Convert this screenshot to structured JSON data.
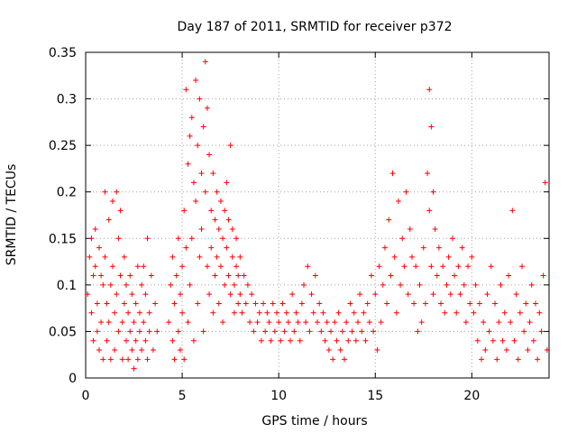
{
  "chart_data": {
    "type": "scatter",
    "title": "Day 187 of 2011, SRMTID for receiver p372",
    "xlabel": "GPS time / hours",
    "ylabel": "SRMTID / TECUs",
    "xlim": [
      0,
      24
    ],
    "ylim": [
      0,
      0.35
    ],
    "x_ticks": [
      0,
      5,
      10,
      15,
      20
    ],
    "x_tick_labels": [
      "0",
      "5",
      "10",
      "15",
      "20"
    ],
    "y_ticks": [
      0,
      0.05,
      0.1,
      0.15,
      0.2,
      0.25,
      0.3,
      0.35
    ],
    "y_tick_labels": [
      "0",
      "0.05",
      "0.1",
      "0.15",
      "0.2",
      "0.25",
      "0.3",
      "0.35"
    ],
    "grid": true,
    "legend": false,
    "marker": "+",
    "color": "#ff0000",
    "series": [
      {
        "points": [
          [
            0.1,
            0.09
          ],
          [
            0.2,
            0.13
          ],
          [
            0.3,
            0.07
          ],
          [
            0.3,
            0.15
          ],
          [
            0.4,
            0.11
          ],
          [
            0.4,
            0.04
          ],
          [
            0.5,
            0.16
          ],
          [
            0.5,
            0.12
          ],
          [
            0.6,
            0.08
          ],
          [
            0.6,
            0.05
          ],
          [
            0.7,
            0.14
          ],
          [
            0.7,
            0.03
          ],
          [
            0.8,
            0.11
          ],
          [
            0.8,
            0.06
          ],
          [
            0.9,
            0.1
          ],
          [
            0.9,
            0.02
          ],
          [
            1.0,
            0.2
          ],
          [
            1.0,
            0.13
          ],
          [
            1.1,
            0.08
          ],
          [
            1.1,
            0.04
          ],
          [
            1.2,
            0.17
          ],
          [
            1.2,
            0.06
          ],
          [
            1.3,
            0.1
          ],
          [
            1.3,
            0.02
          ],
          [
            1.4,
            0.19
          ],
          [
            1.4,
            0.12
          ],
          [
            1.5,
            0.07
          ],
          [
            1.5,
            0.03
          ],
          [
            1.6,
            0.2
          ],
          [
            1.6,
            0.09
          ],
          [
            1.7,
            0.05
          ],
          [
            1.7,
            0.15
          ],
          [
            1.8,
            0.18
          ],
          [
            1.8,
            0.11
          ],
          [
            1.9,
            0.06
          ],
          [
            1.9,
            0.02
          ],
          [
            2.0,
            0.13
          ],
          [
            2.0,
            0.08
          ],
          [
            2.1,
            0.04
          ],
          [
            2.1,
            0.1
          ],
          [
            2.2,
            0.07
          ],
          [
            2.2,
            0.02
          ],
          [
            2.3,
            0.11
          ],
          [
            2.3,
            0.05
          ],
          [
            2.4,
            0.09
          ],
          [
            2.4,
            0.03
          ],
          [
            2.5,
            0.06
          ],
          [
            2.5,
            0.01
          ],
          [
            2.6,
            0.08
          ],
          [
            2.6,
            0.04
          ],
          [
            2.7,
            0.12
          ],
          [
            2.7,
            0.02
          ],
          [
            2.8,
            0.07
          ],
          [
            2.8,
            0.05
          ],
          [
            2.9,
            0.1
          ],
          [
            2.9,
            0.03
          ],
          [
            3.0,
            0.06
          ],
          [
            3.0,
            0.12
          ],
          [
            3.1,
            0.09
          ],
          [
            3.1,
            0.04
          ],
          [
            3.2,
            0.15
          ],
          [
            3.2,
            0.02
          ],
          [
            3.3,
            0.07
          ],
          [
            3.3,
            0.05
          ],
          [
            3.4,
            0.11
          ],
          [
            3.5,
            0.03
          ],
          [
            3.6,
            0.08
          ],
          [
            3.7,
            0.05
          ],
          [
            4.3,
            0.06
          ],
          [
            4.4,
            0.1
          ],
          [
            4.5,
            0.04
          ],
          [
            4.5,
            0.13
          ],
          [
            4.6,
            0.08
          ],
          [
            4.6,
            0.02
          ],
          [
            4.7,
            0.11
          ],
          [
            4.8,
            0.05
          ],
          [
            4.8,
            0.15
          ],
          [
            4.9,
            0.09
          ],
          [
            4.9,
            0.03
          ],
          [
            5.0,
            0.07
          ],
          [
            5.0,
            0.12
          ],
          [
            5.1,
            0.02
          ],
          [
            5.1,
            0.18
          ],
          [
            5.2,
            0.31
          ],
          [
            5.2,
            0.14
          ],
          [
            5.3,
            0.23
          ],
          [
            5.3,
            0.06
          ],
          [
            5.4,
            0.26
          ],
          [
            5.4,
            0.1
          ],
          [
            5.5,
            0.28
          ],
          [
            5.5,
            0.15
          ],
          [
            5.6,
            0.21
          ],
          [
            5.6,
            0.04
          ],
          [
            5.7,
            0.32
          ],
          [
            5.7,
            0.19
          ],
          [
            5.8,
            0.25
          ],
          [
            5.8,
            0.08
          ],
          [
            5.9,
            0.3
          ],
          [
            5.9,
            0.13
          ],
          [
            6.0,
            0.22
          ],
          [
            6.0,
            0.16
          ],
          [
            6.1,
            0.27
          ],
          [
            6.1,
            0.05
          ],
          [
            6.2,
            0.34
          ],
          [
            6.2,
            0.2
          ],
          [
            6.3,
            0.29
          ],
          [
            6.3,
            0.12
          ],
          [
            6.4,
            0.24
          ],
          [
            6.4,
            0.09
          ],
          [
            6.5,
            0.18
          ],
          [
            6.5,
            0.14
          ],
          [
            6.6,
            0.22
          ],
          [
            6.6,
            0.07
          ],
          [
            6.7,
            0.17
          ],
          [
            6.7,
            0.11
          ],
          [
            6.8,
            0.13
          ],
          [
            6.8,
            0.2
          ],
          [
            6.9,
            0.16
          ],
          [
            6.9,
            0.08
          ],
          [
            7.0,
            0.19
          ],
          [
            7.0,
            0.12
          ],
          [
            7.1,
            0.15
          ],
          [
            7.1,
            0.06
          ],
          [
            7.2,
            0.18
          ],
          [
            7.2,
            0.1
          ],
          [
            7.3,
            0.14
          ],
          [
            7.3,
            0.21
          ],
          [
            7.4,
            0.11
          ],
          [
            7.4,
            0.17
          ],
          [
            7.5,
            0.25
          ],
          [
            7.5,
            0.09
          ],
          [
            7.6,
            0.13
          ],
          [
            7.6,
            0.16
          ],
          [
            7.7,
            0.1
          ],
          [
            7.7,
            0.07
          ],
          [
            7.8,
            0.12
          ],
          [
            7.8,
            0.15
          ],
          [
            7.9,
            0.08
          ],
          [
            7.9,
            0.11
          ],
          [
            8.0,
            0.09
          ],
          [
            8.0,
            0.13
          ],
          [
            8.1,
            0.07
          ],
          [
            8.2,
            0.11
          ],
          [
            8.3,
            0.08
          ],
          [
            8.4,
            0.1
          ],
          [
            8.5,
            0.06
          ],
          [
            8.6,
            0.09
          ],
          [
            8.7,
            0.05
          ],
          [
            8.8,
            0.08
          ],
          [
            8.9,
            0.06
          ],
          [
            9.0,
            0.07
          ],
          [
            9.1,
            0.04
          ],
          [
            9.2,
            0.08
          ],
          [
            9.3,
            0.05
          ],
          [
            9.4,
            0.07
          ],
          [
            9.5,
            0.06
          ],
          [
            9.6,
            0.04
          ],
          [
            9.7,
            0.08
          ],
          [
            9.8,
            0.05
          ],
          [
            9.9,
            0.07
          ],
          [
            10.0,
            0.06
          ],
          [
            10.1,
            0.04
          ],
          [
            10.2,
            0.08
          ],
          [
            10.3,
            0.05
          ],
          [
            10.4,
            0.07
          ],
          [
            10.5,
            0.06
          ],
          [
            10.6,
            0.04
          ],
          [
            10.7,
            0.09
          ],
          [
            10.8,
            0.05
          ],
          [
            10.9,
            0.07
          ],
          [
            11.0,
            0.06
          ],
          [
            11.1,
            0.04
          ],
          [
            11.2,
            0.08
          ],
          [
            11.3,
            0.1
          ],
          [
            11.4,
            0.06
          ],
          [
            11.5,
            0.12
          ],
          [
            11.6,
            0.05
          ],
          [
            11.7,
            0.09
          ],
          [
            11.8,
            0.07
          ],
          [
            11.9,
            0.11
          ],
          [
            12.0,
            0.06
          ],
          [
            12.1,
            0.08
          ],
          [
            12.2,
            0.05
          ],
          [
            12.3,
            0.07
          ],
          [
            12.4,
            0.04
          ],
          [
            12.5,
            0.06
          ],
          [
            12.6,
            0.03
          ],
          [
            12.7,
            0.05
          ],
          [
            12.8,
            0.02
          ],
          [
            12.9,
            0.06
          ],
          [
            13.0,
            0.04
          ],
          [
            13.1,
            0.07
          ],
          [
            13.2,
            0.03
          ],
          [
            13.3,
            0.05
          ],
          [
            13.4,
            0.02
          ],
          [
            13.5,
            0.06
          ],
          [
            13.6,
            0.04
          ],
          [
            13.7,
            0.08
          ],
          [
            13.8,
            0.05
          ],
          [
            13.9,
            0.07
          ],
          [
            14.0,
            0.04
          ],
          [
            14.1,
            0.06
          ],
          [
            14.2,
            0.09
          ],
          [
            14.3,
            0.05
          ],
          [
            14.4,
            0.07
          ],
          [
            14.5,
            0.04
          ],
          [
            14.6,
            0.08
          ],
          [
            14.7,
            0.06
          ],
          [
            14.8,
            0.11
          ],
          [
            14.9,
            0.05
          ],
          [
            15.0,
            0.09
          ],
          [
            15.1,
            0.03
          ],
          [
            15.2,
            0.12
          ],
          [
            15.3,
            0.06
          ],
          [
            15.4,
            0.1
          ],
          [
            15.5,
            0.14
          ],
          [
            15.6,
            0.08
          ],
          [
            15.7,
            0.17
          ],
          [
            15.8,
            0.11
          ],
          [
            15.9,
            0.22
          ],
          [
            16.0,
            0.13
          ],
          [
            16.1,
            0.07
          ],
          [
            16.2,
            0.19
          ],
          [
            16.3,
            0.1
          ],
          [
            16.4,
            0.15
          ],
          [
            16.5,
            0.12
          ],
          [
            16.6,
            0.2
          ],
          [
            16.7,
            0.09
          ],
          [
            16.8,
            0.16
          ],
          [
            16.9,
            0.13
          ],
          [
            17.0,
            0.08
          ],
          [
            17.1,
            0.12
          ],
          [
            17.2,
            0.05
          ],
          [
            17.3,
            0.1
          ],
          [
            17.4,
            0.06
          ],
          [
            17.5,
            0.14
          ],
          [
            17.6,
            0.08
          ],
          [
            17.7,
            0.22
          ],
          [
            17.8,
            0.31
          ],
          [
            17.8,
            0.18
          ],
          [
            17.9,
            0.27
          ],
          [
            17.9,
            0.12
          ],
          [
            18.0,
            0.2
          ],
          [
            18.0,
            0.09
          ],
          [
            18.1,
            0.16
          ],
          [
            18.2,
            0.11
          ],
          [
            18.3,
            0.14
          ],
          [
            18.4,
            0.08
          ],
          [
            18.5,
            0.12
          ],
          [
            18.6,
            0.07
          ],
          [
            18.7,
            0.1
          ],
          [
            18.8,
            0.13
          ],
          [
            18.9,
            0.09
          ],
          [
            19.0,
            0.15
          ],
          [
            19.1,
            0.11
          ],
          [
            19.2,
            0.07
          ],
          [
            19.3,
            0.12
          ],
          [
            19.4,
            0.09
          ],
          [
            19.5,
            0.14
          ],
          [
            19.6,
            0.1
          ],
          [
            19.7,
            0.06
          ],
          [
            19.8,
            0.12
          ],
          [
            19.9,
            0.08
          ],
          [
            20.0,
            0.13
          ],
          [
            20.1,
            0.07
          ],
          [
            20.2,
            0.1
          ],
          [
            20.3,
            0.04
          ],
          [
            20.4,
            0.08
          ],
          [
            20.5,
            0.02
          ],
          [
            20.6,
            0.06
          ],
          [
            20.7,
            0.03
          ],
          [
            20.8,
            0.09
          ],
          [
            20.9,
            0.05
          ],
          [
            21.0,
            0.12
          ],
          [
            21.1,
            0.04
          ],
          [
            21.2,
            0.08
          ],
          [
            21.3,
            0.02
          ],
          [
            21.4,
            0.06
          ],
          [
            21.5,
            0.1
          ],
          [
            21.6,
            0.04
          ],
          [
            21.7,
            0.07
          ],
          [
            21.8,
            0.03
          ],
          [
            21.9,
            0.11
          ],
          [
            22.0,
            0.06
          ],
          [
            22.1,
            0.18
          ],
          [
            22.2,
            0.04
          ],
          [
            22.3,
            0.09
          ],
          [
            22.4,
            0.02
          ],
          [
            22.5,
            0.07
          ],
          [
            22.6,
            0.12
          ],
          [
            22.7,
            0.05
          ],
          [
            22.8,
            0.08
          ],
          [
            22.9,
            0.03
          ],
          [
            23.0,
            0.06
          ],
          [
            23.1,
            0.1
          ],
          [
            23.2,
            0.04
          ],
          [
            23.3,
            0.08
          ],
          [
            23.4,
            0.02
          ],
          [
            23.5,
            0.07
          ],
          [
            23.6,
            0.05
          ],
          [
            23.7,
            0.11
          ],
          [
            23.8,
            0.21
          ],
          [
            23.9,
            0.03
          ]
        ]
      }
    ]
  }
}
